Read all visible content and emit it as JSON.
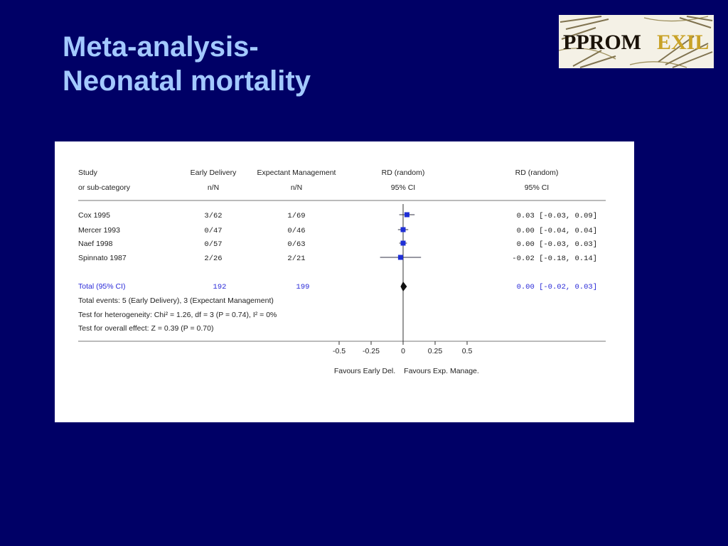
{
  "slide": {
    "title_line1": "Meta-analysis-",
    "title_line2": "Neonatal mortality",
    "logo_text_a": "PPROM",
    "logo_text_b": "EXIL"
  },
  "colors": {
    "background": "#000066",
    "title": "#a3c9ff",
    "marker": "#1f2fd6",
    "summary": "#2a2ad8"
  },
  "chart_data": {
    "type": "forest",
    "headers": {
      "study": [
        "Study",
        "or sub-category"
      ],
      "group1": [
        "Early Delivery",
        "n/N"
      ],
      "group2": [
        "Expectant Management",
        "n/N"
      ],
      "plot": [
        "RD (random)",
        "95% CI"
      ],
      "ci": [
        "RD (random)",
        "95% CI"
      ]
    },
    "studies": [
      {
        "name": "Cox 1995",
        "g1": "3/62",
        "g2": "1/69",
        "rd": 0.03,
        "lo": -0.03,
        "hi": 0.09,
        "ci_text": "0.03 [-0.03, 0.09]"
      },
      {
        "name": "Mercer 1993",
        "g1": "0/47",
        "g2": "0/46",
        "rd": 0.0,
        "lo": -0.04,
        "hi": 0.04,
        "ci_text": "0.00 [-0.04, 0.04]"
      },
      {
        "name": "Naef 1998",
        "g1": "0/57",
        "g2": "0/63",
        "rd": 0.0,
        "lo": -0.03,
        "hi": 0.03,
        "ci_text": "0.00 [-0.03, 0.03]"
      },
      {
        "name": "Spinnato 1987",
        "g1": "2/26",
        "g2": "2/21",
        "rd": -0.02,
        "lo": -0.18,
        "hi": 0.14,
        "ci_text": "-0.02 [-0.18, 0.14]"
      }
    ],
    "total": {
      "name": "Total (95% CI)",
      "g1": "192",
      "g2": "199",
      "rd": 0.0,
      "lo": -0.02,
      "hi": 0.03,
      "ci_text": "0.00 [-0.02, 0.03]"
    },
    "footnotes": [
      "Total events: 5 (Early Delivery), 3 (Expectant Management)",
      "Test for heterogeneity: Chi² = 1.26, df = 3 (P = 0.74), I² = 0%",
      "Test for overall effect: Z = 0.39 (P = 0.70)"
    ],
    "xticks": [
      -0.5,
      -0.25,
      0,
      0.25,
      0.5
    ],
    "xtick_labels": [
      "-0.5",
      "-0.25",
      "0",
      "0.25",
      "0.5"
    ],
    "xlim": [
      -0.5,
      0.5
    ],
    "favours_left": "Favours Early Del.",
    "favours_right": "Favours Exp. Manage."
  }
}
